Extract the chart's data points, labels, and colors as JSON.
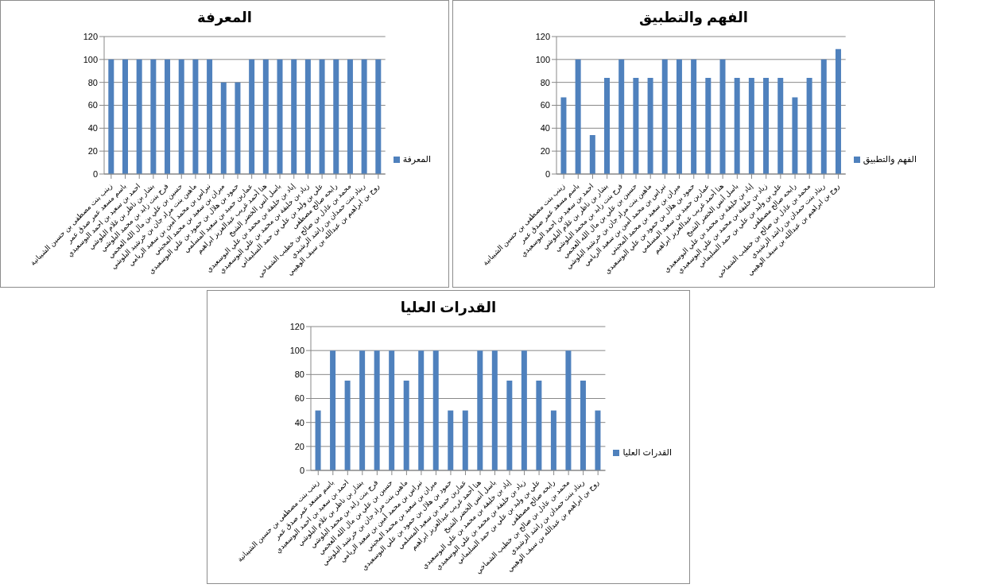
{
  "chart_data": [
    {
      "type": "bar",
      "title": "المعرفة",
      "categories": [
        "زينب بنت مصطفى بن حسين الشيبانية",
        "باسم مسعد عمر صدق عمر",
        "احمد بن سعيد بن احمد البوسعيدي",
        "بشار بن ناظر بن غلام البلوشي",
        "فرح بنت زايد بن محمد البلوشي",
        "حسين بن علي بن مال الله العجمي",
        "ماهين بنت مراد جان بن خرشيد البلوشي",
        "نبراس بن محمد أمين بن سعيد الريامي",
        "ميران بن سعيد بن محمد المجيني",
        "حمود بن هلال بن حمود بن علي البوسعيدي",
        "عماربن حميد بن سعيد المسلمي",
        "هنا أحمد غريب عبدالعزيز ابراهيم",
        "باسل أنس الخضر الشيخ",
        "إياد بن خليفة بن محمد بن علي البوسعيدي",
        "زياد بن خليفة بن محمد بن علي البوسعيدي",
        "علي بن وليد بن علي بن حمد السليماني",
        "رابحه صالح مصطفى",
        "محمد بن عادل بن صالح بن خطيب الشماخي",
        "ريناد بنت حمدان بن راشد الرشيدي",
        "روح بن ابراهيم بن عبدالله بن سيف الوهيبي"
      ],
      "series": [
        {
          "name": "المعرفة",
          "color": "#4f81bd",
          "values": [
            100,
            100,
            100,
            100,
            100,
            100,
            100,
            100,
            80,
            80,
            100,
            100,
            100,
            100,
            100,
            100,
            100,
            100,
            100,
            100
          ]
        }
      ],
      "ylim": [
        0,
        120
      ],
      "yticks": [
        0,
        20,
        40,
        60,
        80,
        100,
        120
      ],
      "grid": "y",
      "legend": "right"
    },
    {
      "type": "bar",
      "title": "الفهم والتطبيق",
      "categories": [
        "زينب بنت مصطفى بن حسين الشيبانية",
        "باسم مسعد عمر صدق عمر",
        "احمد بن سعيد بن احمد البوسعيدي",
        "بشار بن ناظر بن غلام البلوشي",
        "فرح بنت زايد بن محمد البلوشي",
        "حسين بن علي بن مال الله العجمي",
        "ماهين بنت مراد جان بن خرشيد البلوشي",
        "نبراس بن محمد أمين بن سعيد الريامي",
        "ميران بن سعيد بن محمد المجيني",
        "حمود بن هلال بن حمود بن علي البوسعيدي",
        "عماربن حميد بن سعيد المسلمي",
        "هنا أحمد غريب عبدالعزيز ابراهيم",
        "باسل أنس الخضر الشيخ",
        "إياد بن خليفة بن محمد بن علي البوسعيدي",
        "زياد بن خليفة بن محمد بن علي البوسعيدي",
        "علي بن وليد بن علي بن حمد السليماني",
        "رابحه صالح مصطفى",
        "محمد بن عادل بن صالح بن خطيب الشماخي",
        "ريناد بنت حمدان بن راشد الرشيدي",
        "روح بن ابراهيم بن عبدالله بن سيف الوهيبي"
      ],
      "series": [
        {
          "name": "الفهم والتطبيق",
          "color": "#4f81bd",
          "values": [
            67,
            100,
            34,
            84,
            100,
            84,
            84,
            100,
            100,
            100,
            84,
            100,
            84,
            84,
            84,
            84,
            67,
            84,
            100,
            109
          ]
        }
      ],
      "ylim": [
        0,
        120
      ],
      "yticks": [
        0,
        20,
        40,
        60,
        80,
        100,
        120
      ],
      "grid": "y",
      "legend": "right"
    },
    {
      "type": "bar",
      "title": "القدرات العليا",
      "categories": [
        "زينب بنت مصطفى بن حسين الشيبانية",
        "باسم مسعد عمر صدق عمر",
        "احمد بن سعيد بن احمد البوسعيدي",
        "بشار بن ناظر بن غلام البلوشي",
        "فرح بنت زايد بن محمد البلوشي",
        "حسين بن علي بن مال الله العجمي",
        "ماهين بنت مراد جان بن خرشيد البلوشي",
        "نبراس بن محمد أمين بن سعيد الريامي",
        "ميران بن سعيد بن محمد المجيني",
        "حمود بن هلال بن حمود بن علي البوسعيدي",
        "عماربن حميد بن سعيد المسلمي",
        "هنا أحمد غريب عبدالعزيز ابراهيم",
        "باسل أنس الخضر الشيخ",
        "إياد بن خليفة بن محمد بن علي البوسعيدي",
        "زياد بن خليفة بن محمد بن علي البوسعيدي",
        "علي بن وليد بن علي بن حمد السليماني",
        "رابحه صالح مصطفى",
        "محمد بن عادل بن صالح بن خطيب الشماخي",
        "ريناد بنت حمدان بن راشد الرشيدي",
        "روح بن ابراهيم بن عبدالله بن سيف الوهيبي"
      ],
      "series": [
        {
          "name": "القدرات العليا",
          "color": "#4f81bd",
          "values": [
            50,
            100,
            75,
            100,
            100,
            100,
            75,
            100,
            100,
            50,
            50,
            100,
            100,
            75,
            100,
            75,
            50,
            100,
            75,
            50
          ]
        }
      ],
      "ylim": [
        0,
        120
      ],
      "yticks": [
        0,
        20,
        40,
        60,
        80,
        100,
        120
      ],
      "grid": "y",
      "legend": "right"
    }
  ]
}
